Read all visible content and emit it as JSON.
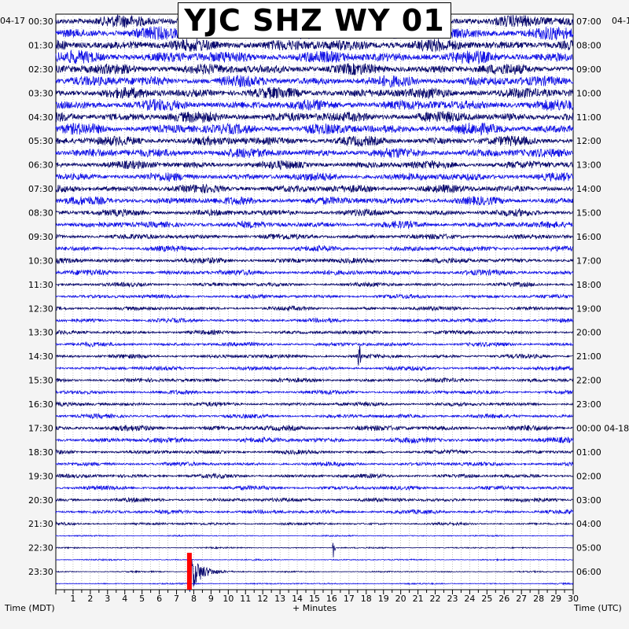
{
  "title": "YJC SHZ WY 01",
  "left_date": "04-17",
  "right_date": "04-1",
  "left_axis_title": "Time (MDT)",
  "right_axis_title": "Time (UTC)",
  "x_axis_title": "+ Minutes",
  "colors": {
    "trace_dark": "#0a0a6e",
    "trace_blue": "#1515e6",
    "event_marker": "#ff0000",
    "plot_bg": "#ffffff"
  },
  "chart_data": {
    "type": "line",
    "title": "YJC SHZ WY 01",
    "xlabel": "+ Minutes",
    "ylabel_left": "Time (MDT)",
    "ylabel_right": "Time (UTC)",
    "xlim": [
      0,
      30
    ],
    "x_ticks": [
      "1",
      "2",
      "3",
      "4",
      "5",
      "6",
      "7",
      "8",
      "9",
      "10",
      "11",
      "12",
      "13",
      "14",
      "15",
      "16",
      "17",
      "18",
      "19",
      "20",
      "21",
      "22",
      "23",
      "24",
      "25",
      "26",
      "27",
      "28",
      "29",
      "30"
    ],
    "left_ticks": [
      "00:30",
      "01:30",
      "02:30",
      "03:30",
      "04:30",
      "05:30",
      "06:30",
      "07:30",
      "08:30",
      "09:30",
      "10:30",
      "11:30",
      "12:30",
      "13:30",
      "14:30",
      "15:30",
      "16:30",
      "17:30",
      "18:30",
      "19:30",
      "20:30",
      "21:30",
      "22:30",
      "23:30"
    ],
    "right_ticks": [
      "07:00",
      "08:00",
      "09:00",
      "10:00",
      "11:00",
      "12:00",
      "13:00",
      "14:00",
      "15:00",
      "16:00",
      "17:00",
      "18:00",
      "19:00",
      "20:00",
      "21:00",
      "22:00",
      "23:00",
      "00:00 04-18",
      "01:00",
      "02:00",
      "03:00",
      "04:00",
      "05:00",
      "06:00"
    ],
    "trace_rows": 48,
    "row_amplitude": [
      9,
      9,
      9,
      9,
      8,
      8,
      8,
      8,
      8,
      8,
      7,
      7,
      6,
      6,
      6,
      6,
      5,
      5,
      4,
      4,
      4,
      4,
      3,
      3,
      3,
      3,
      3,
      3,
      3,
      3,
      3,
      3,
      3,
      3,
      4,
      4,
      3,
      3,
      3,
      3,
      3,
      3,
      2,
      1,
      1,
      1,
      1,
      1
    ],
    "events": [
      {
        "label": "earthquake",
        "row": 46,
        "start_minute": 7.7,
        "marker_minute": 7.7
      },
      {
        "label": "spike",
        "row": 44,
        "start_minute": 16.1
      },
      {
        "label": "spike",
        "row": 28,
        "start_minute": 17.6
      }
    ]
  }
}
